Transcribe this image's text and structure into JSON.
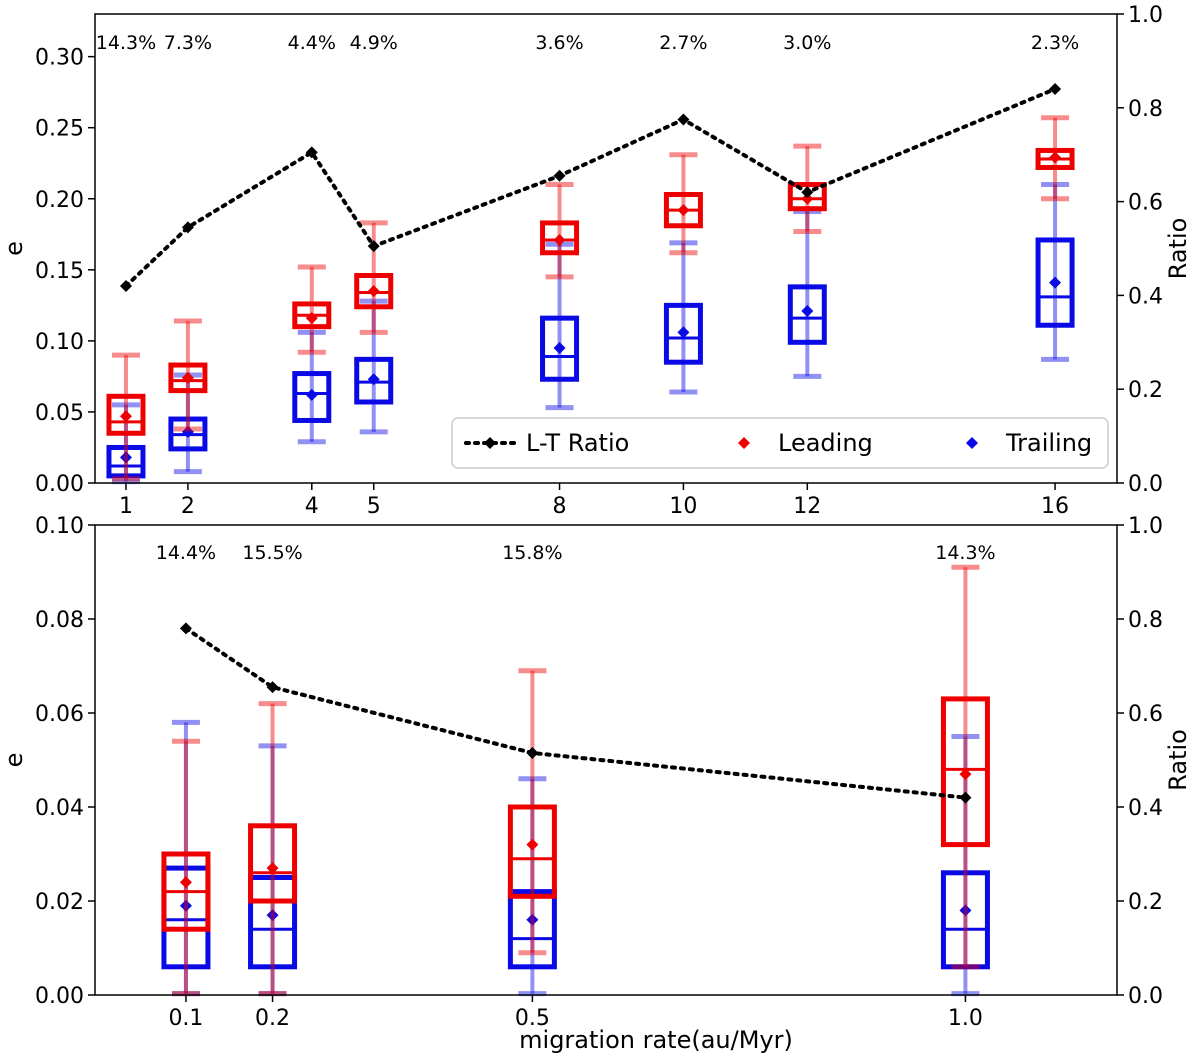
{
  "colors": {
    "leading": "#ee0000",
    "trailing": "#0a0ae6",
    "ratio": "#000000"
  },
  "chart_data": [
    {
      "type": "box",
      "panel": "top",
      "x": [
        1,
        2,
        4,
        5,
        8,
        10,
        12,
        16
      ],
      "x_tick_labels": [
        "1",
        "2",
        "4",
        "5",
        "8",
        "10",
        "12",
        "16"
      ],
      "xlim": [
        0.5,
        17
      ],
      "ylabel": "e",
      "ylim": [
        0,
        0.33
      ],
      "y_ticks": [
        0.0,
        0.05,
        0.1,
        0.15,
        0.2,
        0.25,
        0.3
      ],
      "y_tick_labels": [
        "0.00",
        "0.05",
        "0.10",
        "0.15",
        "0.20",
        "0.25",
        "0.30"
      ],
      "y2label": "Ratio",
      "y2lim": [
        0,
        1.0
      ],
      "y2_ticks": [
        0.0,
        0.2,
        0.4,
        0.6,
        0.8,
        1.0
      ],
      "y2_tick_labels": [
        "0.0",
        "0.2",
        "0.4",
        "0.6",
        "0.8",
        "1.0"
      ],
      "percent_labels": [
        "14.3%",
        "7.3%",
        "4.4%",
        "4.9%",
        "3.6%",
        "2.7%",
        "3.0%",
        "2.3%"
      ],
      "leading": [
        {
          "whislo": 0.003,
          "q1": 0.035,
          "med": 0.043,
          "q3": 0.061,
          "whishi": 0.09,
          "mean": 0.047
        },
        {
          "whislo": 0.038,
          "q1": 0.065,
          "med": 0.072,
          "q3": 0.083,
          "whishi": 0.114,
          "mean": 0.074
        },
        {
          "whislo": 0.092,
          "q1": 0.11,
          "med": 0.118,
          "q3": 0.126,
          "whishi": 0.152,
          "mean": 0.116
        },
        {
          "whislo": 0.106,
          "q1": 0.124,
          "med": 0.134,
          "q3": 0.146,
          "whishi": 0.183,
          "mean": 0.135
        },
        {
          "whislo": 0.145,
          "q1": 0.162,
          "med": 0.171,
          "q3": 0.183,
          "whishi": 0.21,
          "mean": 0.171
        },
        {
          "whislo": 0.162,
          "q1": 0.181,
          "med": 0.192,
          "q3": 0.203,
          "whishi": 0.231,
          "mean": 0.192
        },
        {
          "whislo": 0.177,
          "q1": 0.193,
          "med": 0.2,
          "q3": 0.21,
          "whishi": 0.237,
          "mean": 0.2
        },
        {
          "whislo": 0.2,
          "q1": 0.222,
          "med": 0.228,
          "q3": 0.234,
          "whishi": 0.257,
          "mean": 0.229
        }
      ],
      "trailing": [
        {
          "whislo": 0.001,
          "q1": 0.005,
          "med": 0.012,
          "q3": 0.025,
          "whishi": 0.055,
          "mean": 0.018
        },
        {
          "whislo": 0.008,
          "q1": 0.024,
          "med": 0.034,
          "q3": 0.045,
          "whishi": 0.076,
          "mean": 0.036
        },
        {
          "whislo": 0.029,
          "q1": 0.044,
          "med": 0.063,
          "q3": 0.077,
          "whishi": 0.106,
          "mean": 0.062
        },
        {
          "whislo": 0.036,
          "q1": 0.057,
          "med": 0.071,
          "q3": 0.087,
          "whishi": 0.128,
          "mean": 0.073
        },
        {
          "whislo": 0.053,
          "q1": 0.073,
          "med": 0.089,
          "q3": 0.116,
          "whishi": 0.168,
          "mean": 0.095
        },
        {
          "whislo": 0.064,
          "q1": 0.085,
          "med": 0.102,
          "q3": 0.125,
          "whishi": 0.169,
          "mean": 0.106
        },
        {
          "whislo": 0.075,
          "q1": 0.099,
          "med": 0.116,
          "q3": 0.138,
          "whishi": 0.191,
          "mean": 0.121
        },
        {
          "whislo": 0.087,
          "q1": 0.111,
          "med": 0.131,
          "q3": 0.171,
          "whishi": 0.21,
          "mean": 0.141
        }
      ],
      "ratio": [
        0.42,
        0.545,
        0.705,
        0.505,
        0.655,
        0.775,
        0.62,
        0.84
      ],
      "legend": {
        "position": "lower-right",
        "entries": [
          "L-T Ratio",
          "Leading",
          "Trailing"
        ]
      }
    },
    {
      "type": "box",
      "panel": "bottom",
      "x": [
        0.1,
        0.2,
        0.5,
        1.0
      ],
      "x_tick_labels": [
        "0.1",
        "0.2",
        "0.5",
        "1.0"
      ],
      "xlim": [
        -0.005,
        1.175
      ],
      "xlabel": "migration rate(au/Myr)",
      "ylabel": "e",
      "ylim": [
        0,
        0.1
      ],
      "y_ticks": [
        0.0,
        0.02,
        0.04,
        0.06,
        0.08,
        0.1
      ],
      "y_tick_labels": [
        "0.00",
        "0.02",
        "0.04",
        "0.06",
        "0.08",
        "0.10"
      ],
      "y2label": "Ratio",
      "y2lim": [
        0,
        1.0
      ],
      "y2_ticks": [
        0.0,
        0.2,
        0.4,
        0.6,
        0.8,
        1.0
      ],
      "y2_tick_labels": [
        "0.0",
        "0.2",
        "0.4",
        "0.6",
        "0.8",
        "1.0"
      ],
      "percent_labels": [
        "14.4%",
        "15.5%",
        "15.8%",
        "14.3%"
      ],
      "leading": [
        {
          "whislo": 0.0003,
          "q1": 0.014,
          "med": 0.022,
          "q3": 0.03,
          "whishi": 0.054,
          "mean": 0.024
        },
        {
          "whislo": 0.0003,
          "q1": 0.02,
          "med": 0.026,
          "q3": 0.036,
          "whishi": 0.062,
          "mean": 0.027
        },
        {
          "whislo": 0.009,
          "q1": 0.021,
          "med": 0.029,
          "q3": 0.04,
          "whishi": 0.069,
          "mean": 0.032
        },
        {
          "whislo": 0.006,
          "q1": 0.032,
          "med": 0.048,
          "q3": 0.063,
          "whishi": 0.091,
          "mean": 0.047
        }
      ],
      "trailing": [
        {
          "whislo": 0.0003,
          "q1": 0.006,
          "med": 0.016,
          "q3": 0.027,
          "whishi": 0.058,
          "mean": 0.019
        },
        {
          "whislo": 0.0003,
          "q1": 0.006,
          "med": 0.014,
          "q3": 0.025,
          "whishi": 0.053,
          "mean": 0.017
        },
        {
          "whislo": 0.0003,
          "q1": 0.006,
          "med": 0.012,
          "q3": 0.022,
          "whishi": 0.046,
          "mean": 0.016
        },
        {
          "whislo": 0.0003,
          "q1": 0.006,
          "med": 0.014,
          "q3": 0.026,
          "whishi": 0.055,
          "mean": 0.018
        }
      ],
      "ratio": [
        0.78,
        0.655,
        0.515,
        0.42
      ]
    }
  ]
}
